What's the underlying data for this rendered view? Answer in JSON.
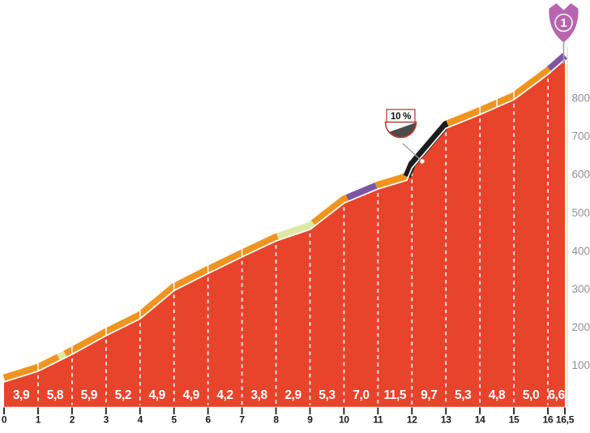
{
  "chart_data": {
    "type": "area",
    "title": "",
    "description": "mountain climb gradient profile",
    "x_axis": {
      "unit": "km",
      "range": [
        0,
        16.5
      ],
      "ticks": [
        {
          "km": 0,
          "label": "0"
        },
        {
          "km": 1,
          "label": "1"
        },
        {
          "km": 2,
          "label": "2"
        },
        {
          "km": 3,
          "label": "3"
        },
        {
          "km": 4,
          "label": "4"
        },
        {
          "km": 5,
          "label": "5"
        },
        {
          "km": 6,
          "label": "6"
        },
        {
          "km": 7,
          "label": "7"
        },
        {
          "km": 8,
          "label": "8"
        },
        {
          "km": 9,
          "label": "9"
        },
        {
          "km": 10,
          "label": "10"
        },
        {
          "km": 11,
          "label": "11"
        },
        {
          "km": 12,
          "label": "12"
        },
        {
          "km": 13,
          "label": "13"
        },
        {
          "km": 14,
          "label": "14"
        },
        {
          "km": 15,
          "label": "15"
        },
        {
          "km": 16,
          "label": "16"
        },
        {
          "km": 16.5,
          "label": "16,5"
        }
      ]
    },
    "y_axis": {
      "unit": "m",
      "ticks": [
        800,
        700,
        600,
        500,
        400,
        300,
        200,
        100
      ]
    },
    "gradient_segments": [
      {
        "from": 0,
        "to": 1,
        "label": "3,9",
        "value": 3.9
      },
      {
        "from": 1,
        "to": 2,
        "label": "5,8",
        "value": 5.8
      },
      {
        "from": 2,
        "to": 3,
        "label": "5,9",
        "value": 5.9
      },
      {
        "from": 3,
        "to": 4,
        "label": "5,2",
        "value": 5.2
      },
      {
        "from": 4,
        "to": 5,
        "label": "4,9",
        "value": 4.9
      },
      {
        "from": 5,
        "to": 6,
        "label": "4,9",
        "value": 4.9
      },
      {
        "from": 6,
        "to": 7,
        "label": "4,2",
        "value": 4.2
      },
      {
        "from": 7,
        "to": 8,
        "label": "3,8",
        "value": 3.8
      },
      {
        "from": 8,
        "to": 9,
        "label": "2,9",
        "value": 2.9
      },
      {
        "from": 9,
        "to": 10,
        "label": "5,3",
        "value": 5.3
      },
      {
        "from": 10,
        "to": 11,
        "label": "7,0",
        "value": 7.0
      },
      {
        "from": 11,
        "to": 12,
        "label": "11,5",
        "value": 11.5
      },
      {
        "from": 12,
        "to": 13,
        "label": "9,7",
        "value": 9.7
      },
      {
        "from": 13,
        "to": 14,
        "label": "5,3",
        "value": 5.3
      },
      {
        "from": 14,
        "to": 15,
        "label": "4,8",
        "value": 4.8
      },
      {
        "from": 15,
        "to": 16,
        "label": "5,0",
        "value": 5.0
      },
      {
        "from": 16,
        "to": 16.5,
        "label": "6,6",
        "value": 6.6
      }
    ],
    "profile": [
      [
        0,
        57
      ],
      [
        1,
        85
      ],
      [
        2,
        129
      ],
      [
        3,
        178
      ],
      [
        4,
        222
      ],
      [
        5,
        296
      ],
      [
        6,
        341
      ],
      [
        7,
        384
      ],
      [
        8,
        426
      ],
      [
        9,
        456
      ],
      [
        10,
        525
      ],
      [
        11,
        562
      ],
      [
        11.85,
        585
      ],
      [
        12,
        617
      ],
      [
        13,
        721
      ],
      [
        14,
        757
      ],
      [
        15,
        796
      ],
      [
        16,
        862
      ],
      [
        16.5,
        901
      ]
    ],
    "band_segments": [
      {
        "from": 0,
        "to": 1.6,
        "color_key": "orange"
      },
      {
        "from": 1.6,
        "to": 1.8,
        "color_key": "green"
      },
      {
        "from": 1.8,
        "to": 8.05,
        "color_key": "orange"
      },
      {
        "from": 8.05,
        "to": 9.1,
        "color_key": "green"
      },
      {
        "from": 9.1,
        "to": 10.1,
        "color_key": "orange"
      },
      {
        "from": 10.1,
        "to": 10.95,
        "color_key": "purple"
      },
      {
        "from": 10.95,
        "to": 11.85,
        "color_key": "orange"
      },
      {
        "from": 11.85,
        "to": 13.05,
        "color_key": "black"
      },
      {
        "from": 13.05,
        "to": 16.05,
        "color_key": "orange"
      },
      {
        "from": 16.05,
        "to": 16.5,
        "color_key": "purple"
      }
    ],
    "band_separators_km": [
      1,
      2,
      3,
      4,
      5,
      6,
      7,
      14,
      14.5,
      15
    ],
    "summit": {
      "label": "1"
    },
    "callout": {
      "label": "10 %"
    },
    "colors": {
      "area_fill": "#e8442c",
      "orange": "#f1941f",
      "green": "#dde9a0",
      "purple": "#7d55a2",
      "black": "#1c1c1c",
      "road_line": "#ffffff",
      "dashed_line": "#ffffff",
      "flag": "#b765b1",
      "axis_line": "#cfcfcf",
      "tick": "#1a1a1a",
      "leader_line": "#9a9a9a",
      "badge_border": "#cf3b2c",
      "badge_slope": "#4b4b4b"
    }
  }
}
